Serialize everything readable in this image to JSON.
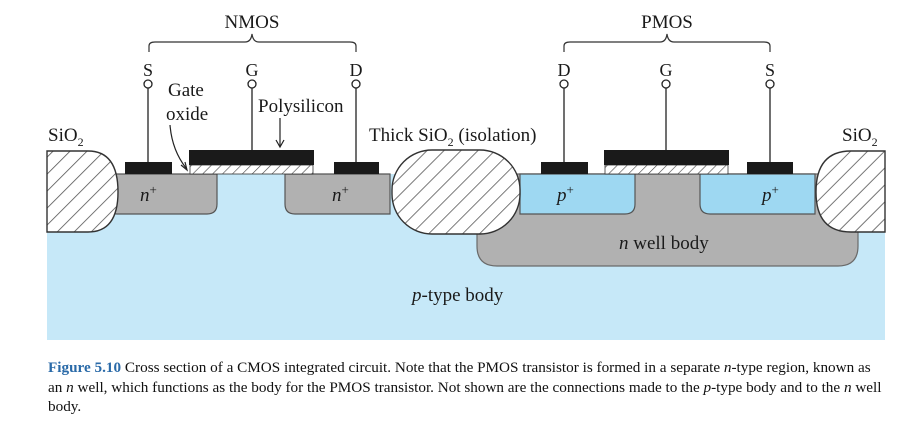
{
  "diagram": {
    "nmos_label": "NMOS",
    "pmos_label": "PMOS",
    "nmos_terminals": {
      "source": "S",
      "gate": "G",
      "drain": "D"
    },
    "pmos_terminals": {
      "drain": "D",
      "gate": "G",
      "source": "S"
    },
    "gate_oxide_line1": "Gate",
    "gate_oxide_line2": "oxide",
    "polysilicon_label": "Polysilicon",
    "sio2_left_base": "SiO",
    "sio2_left_sub": "2",
    "sio2_right_base": "SiO",
    "sio2_right_sub": "2",
    "thick_sio2_base": "Thick SiO",
    "thick_sio2_sub": "2",
    "thick_sio2_rest": " (isolation)",
    "n_plus_base": "n",
    "n_plus_sup": "+",
    "p_plus_base": "p",
    "p_plus_sup": "+",
    "n_well_italic": "n",
    "n_well_rest": " well body",
    "p_body_italic": "p",
    "p_body_rest": "-type body"
  },
  "colors": {
    "substrate": "#c6e8f8",
    "n_regions": "#b1b1b1",
    "p_plus": "#9ed8f2",
    "metal": "#1a1a1a",
    "caption_label": "#2a6aa8"
  },
  "caption": {
    "label": "Figure 5.10",
    "t1": " Cross section of a CMOS integrated circuit. Note that the PMOS transistor is formed in a separate ",
    "i1": "n",
    "t2": "-type region, known as an ",
    "i2": "n",
    "t3": " well, which functions as the body for the PMOS transistor. Not shown are the connections made to the ",
    "i3": "p",
    "t4": "-type body and to the ",
    "i4": "n",
    "t5": " well body."
  }
}
